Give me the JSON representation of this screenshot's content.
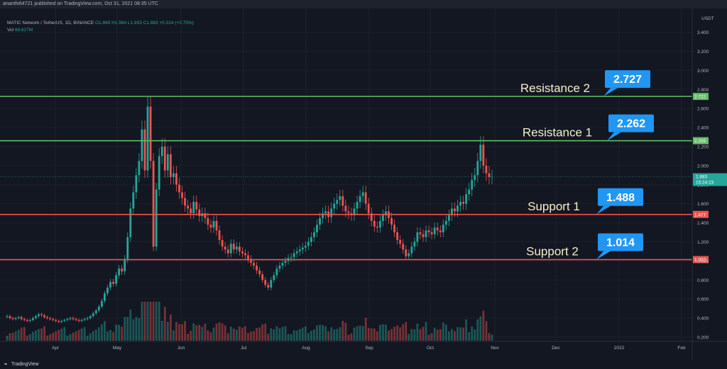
{
  "header": {
    "published": "ananthi64721 published on TradingView.com, Oct 31, 2021 08:35 UTC"
  },
  "legend": {
    "symbol": "MATIC Network / TetherUS, 1D, BINANCE",
    "ohlc": "O1.869 H1.984 L1.833 C1.883 +0.014 (+0.75%)",
    "vol_label": "Vol",
    "vol_value": "68.627M"
  },
  "price_axis": {
    "currency": "USDT",
    "ticks": [
      "3.400",
      "3.200",
      "3.000",
      "2.800",
      "2.600",
      "2.400",
      "2.200",
      "2.000",
      "1.800",
      "1.600",
      "1.400",
      "1.200",
      "1.000",
      "0.800",
      "0.600",
      "0.400",
      "0.200"
    ]
  },
  "time_axis": {
    "labels": [
      "Apr",
      "May",
      "Jun",
      "Jul",
      "Aug",
      "Sep",
      "Oct",
      "Nov",
      "Dec",
      "2022",
      "Feb"
    ]
  },
  "levels": [
    {
      "name": "Resistance 2",
      "value": 2.727,
      "callout": "2.727",
      "axis_badge": "2.722",
      "color": "#66bb6a"
    },
    {
      "name": "Resistance 1",
      "value": 2.262,
      "callout": "2.262",
      "axis_badge": "2.255",
      "color": "#66bb6a"
    },
    {
      "name": "Support 1",
      "value": 1.488,
      "callout": "1.488",
      "axis_badge": "1.477",
      "color": "#ef5350"
    },
    {
      "name": "Support 2",
      "value": 1.014,
      "callout": "1.014",
      "axis_badge": "1.003",
      "color": "#ef5350"
    }
  ],
  "last_price": {
    "price": "1.883",
    "countdown": "15:24:23"
  },
  "footer": {
    "brand": "TradingView"
  },
  "colors": {
    "up": "#26a69a",
    "down": "#ef5350",
    "callout": "#2196f3",
    "label_text": "#f5f0c8"
  },
  "chart_data": {
    "type": "candlestick",
    "title": "MATIC Network / TetherUS, 1D, BINANCE",
    "ylim": [
      0.1,
      3.55
    ],
    "closes": [
      0.42,
      0.4,
      0.39,
      0.4,
      0.41,
      0.39,
      0.38,
      0.37,
      0.38,
      0.4,
      0.42,
      0.44,
      0.43,
      0.41,
      0.4,
      0.39,
      0.38,
      0.37,
      0.36,
      0.37,
      0.38,
      0.39,
      0.4,
      0.39,
      0.38,
      0.37,
      0.38,
      0.39,
      0.4,
      0.42,
      0.45,
      0.48,
      0.52,
      0.58,
      0.66,
      0.72,
      0.78,
      0.76,
      0.85,
      0.92,
      0.89,
      1.02,
      1.25,
      1.55,
      1.72,
      1.9,
      2.05,
      2.38,
      1.95,
      2.62,
      2.05,
      1.15,
      1.75,
      2.1,
      2.2,
      1.95,
      2.12,
      1.88,
      1.92,
      1.8,
      1.72,
      1.66,
      1.58,
      1.55,
      1.5,
      1.62,
      1.54,
      1.47,
      1.5,
      1.45,
      1.38,
      1.35,
      1.42,
      1.32,
      1.22,
      1.15,
      1.12,
      1.08,
      1.18,
      1.12,
      1.15,
      1.1,
      1.08,
      1.06,
      1.02,
      0.98,
      0.95,
      0.9,
      0.86,
      0.8,
      0.75,
      0.72,
      0.8,
      0.85,
      0.92,
      0.95,
      0.98,
      1.0,
      1.03,
      1.04,
      1.08,
      1.1,
      1.12,
      1.14,
      1.16,
      1.2,
      1.25,
      1.3,
      1.38,
      1.45,
      1.5,
      1.52,
      1.46,
      1.55,
      1.6,
      1.64,
      1.68,
      1.58,
      1.52,
      1.5,
      1.48,
      1.55,
      1.62,
      1.68,
      1.72,
      1.6,
      1.5,
      1.42,
      1.36,
      1.35,
      1.42,
      1.48,
      1.52,
      1.45,
      1.38,
      1.3,
      1.22,
      1.18,
      1.12,
      1.05,
      1.08,
      1.15,
      1.2,
      1.3,
      1.28,
      1.25,
      1.32,
      1.3,
      1.28,
      1.35,
      1.32,
      1.3,
      1.38,
      1.42,
      1.48,
      1.55,
      1.52,
      1.58,
      1.62,
      1.6,
      1.7,
      1.75,
      1.85,
      1.9,
      2.05,
      2.22,
      2.0,
      1.92,
      1.88,
      1.883
    ]
  }
}
